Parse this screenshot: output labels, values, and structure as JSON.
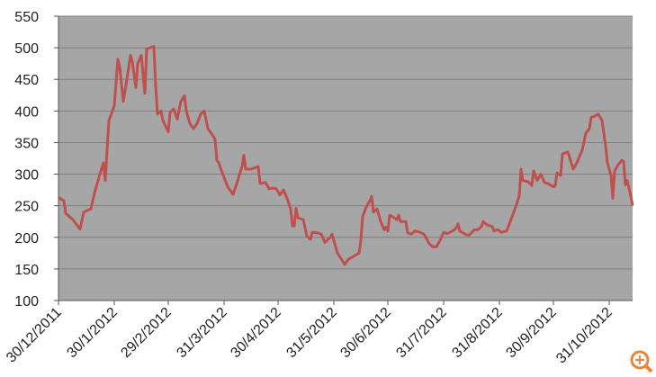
{
  "chart_data": {
    "type": "line",
    "x": [
      "30/12/2011",
      "2/1/2012",
      "3/1/2012",
      "7/1/2012",
      "11/1/2012",
      "13/1/2012",
      "17/1/2012",
      "19/1/2012",
      "22/1/2012",
      "24/1/2012",
      "25/1/2012",
      "27/1/2012",
      "30/1/2012",
      "1/2/2012",
      "2/2/2012",
      "4/2/2012",
      "6/2/2012",
      "8/2/2012",
      "9/2/2012",
      "11/2/2012",
      "12/2/2012",
      "14/2/2012",
      "16/2/2012",
      "17/2/2012",
      "21/2/2012",
      "22/2/2012",
      "23/2/2012",
      "25/2/2012",
      "26/2/2012",
      "29/2/2012",
      "1/3/2012",
      "3/3/2012",
      "5/3/2012",
      "7/3/2012",
      "9/3/2012",
      "10/3/2012",
      "12/3/2012",
      "14/3/2012",
      "16/3/2012",
      "18/3/2012",
      "20/3/2012",
      "22/3/2012",
      "25/3/2012",
      "26/3/2012",
      "27/3/2012",
      "28/3/2012",
      "30/3/2012",
      "2/4/2012",
      "5/4/2012",
      "7/4/2012",
      "10/4/2012",
      "11/4/2012",
      "12/4/2012",
      "15/4/2012",
      "19/4/2012",
      "20/4/2012",
      "23/4/2012",
      "25/4/2012",
      "27/4/2012",
      "29/4/2012",
      "1/5/2012",
      "3/5/2012",
      "5/5/2012",
      "7/5/2012",
      "8/5/2012",
      "9/5/2012",
      "10/5/2012",
      "11/5/2012",
      "14/5/2012",
      "16/5/2012",
      "18/5/2012",
      "19/5/2012",
      "22/5/2012",
      "24/5/2012",
      "26/5/2012",
      "29/5/2012",
      "30/5/2012",
      "31/5/2012",
      "2/6/2012",
      "5/6/2012",
      "6/6/2012",
      "8/6/2012",
      "11/6/2012",
      "14/6/2012",
      "15/6/2012",
      "16/6/2012",
      "18/6/2012",
      "20/6/2012",
      "21/6/2012",
      "22/6/2012",
      "24/6/2012",
      "26/6/2012",
      "28/6/2012",
      "29/6/2012",
      "30/6/2012",
      "1/7/2012",
      "3/7/2012",
      "5/7/2012",
      "6/7/2012",
      "7/7/2012",
      "10/7/2012",
      "11/7/2012",
      "13/7/2012",
      "15/7/2012",
      "18/7/2012",
      "20/7/2012",
      "23/7/2012",
      "25/7/2012",
      "27/7/2012",
      "29/7/2012",
      "31/7/2012",
      "2/8/2012",
      "5/8/2012",
      "7/8/2012",
      "8/8/2012",
      "9/8/2012",
      "12/8/2012",
      "14/8/2012",
      "17/8/2012",
      "19/8/2012",
      "21/8/2012",
      "22/8/2012",
      "24/8/2012",
      "27/8/2012",
      "28/8/2012",
      "30/8/2012",
      "1/9/2012",
      "4/9/2012",
      "6/9/2012",
      "8/9/2012",
      "11/9/2012",
      "12/9/2012",
      "13/9/2012",
      "16/9/2012",
      "18/9/2012",
      "19/9/2012",
      "21/9/2012",
      "23/9/2012",
      "25/9/2012",
      "27/9/2012",
      "30/9/2012",
      "1/10/2012",
      "2/10/2012",
      "4/10/2012",
      "5/10/2012",
      "8/10/2012",
      "11/10/2012",
      "13/10/2012",
      "16/10/2012",
      "18/10/2012",
      "20/10/2012",
      "21/10/2012",
      "23/10/2012",
      "25/10/2012",
      "27/10/2012",
      "29/10/2012",
      "30/10/2012",
      "1/11/2012",
      "2/11/2012",
      "3/11/2012",
      "5/11/2012",
      "7/11/2012",
      "8/11/2012",
      "9/11/2012",
      "10/11/2012",
      "12/11/2012",
      "13/11/2012"
    ],
    "values": [
      263,
      258,
      238,
      228,
      213,
      240,
      245,
      270,
      300,
      318,
      290,
      385,
      408,
      482,
      470,
      415,
      450,
      488,
      478,
      437,
      475,
      488,
      428,
      498,
      502,
      440,
      395,
      400,
      385,
      367,
      398,
      403,
      387,
      415,
      424,
      400,
      380,
      372,
      380,
      395,
      400,
      372,
      360,
      355,
      322,
      318,
      302,
      280,
      268,
      285,
      312,
      330,
      308,
      308,
      312,
      285,
      287,
      277,
      278,
      277,
      267,
      275,
      262,
      245,
      218,
      218,
      246,
      231,
      228,
      202,
      197,
      208,
      207,
      205,
      192,
      200,
      205,
      195,
      175,
      162,
      157,
      165,
      170,
      175,
      195,
      233,
      248,
      258,
      265,
      240,
      245,
      225,
      212,
      216,
      210,
      235,
      232,
      228,
      235,
      225,
      225,
      207,
      205,
      210,
      208,
      205,
      190,
      185,
      185,
      195,
      208,
      206,
      210,
      215,
      221,
      210,
      205,
      203,
      212,
      212,
      217,
      225,
      220,
      217,
      210,
      212,
      208,
      210,
      225,
      240,
      265,
      308,
      290,
      288,
      282,
      305,
      290,
      300,
      287,
      285,
      280,
      282,
      302,
      298,
      332,
      335,
      308,
      318,
      338,
      365,
      372,
      390,
      392,
      395,
      385,
      345,
      318,
      298,
      262,
      305,
      315,
      322,
      320,
      283,
      290,
      265,
      250
    ],
    "color": "#c0504d",
    "xlim": [
      "30/12/2011",
      "13/11/2012"
    ],
    "xticks": [
      "30/12/2011",
      "30/1/2012",
      "29/2/2012",
      "31/3/2012",
      "30/4/2012",
      "31/5/2012",
      "30/6/2012",
      "31/7/2012",
      "31/8/2012",
      "30/9/2012",
      "31/10/2012"
    ],
    "ylim": [
      100,
      550
    ],
    "yticks": [
      100,
      150,
      200,
      250,
      300,
      350,
      400,
      450,
      500,
      550
    ],
    "grid": true
  }
}
